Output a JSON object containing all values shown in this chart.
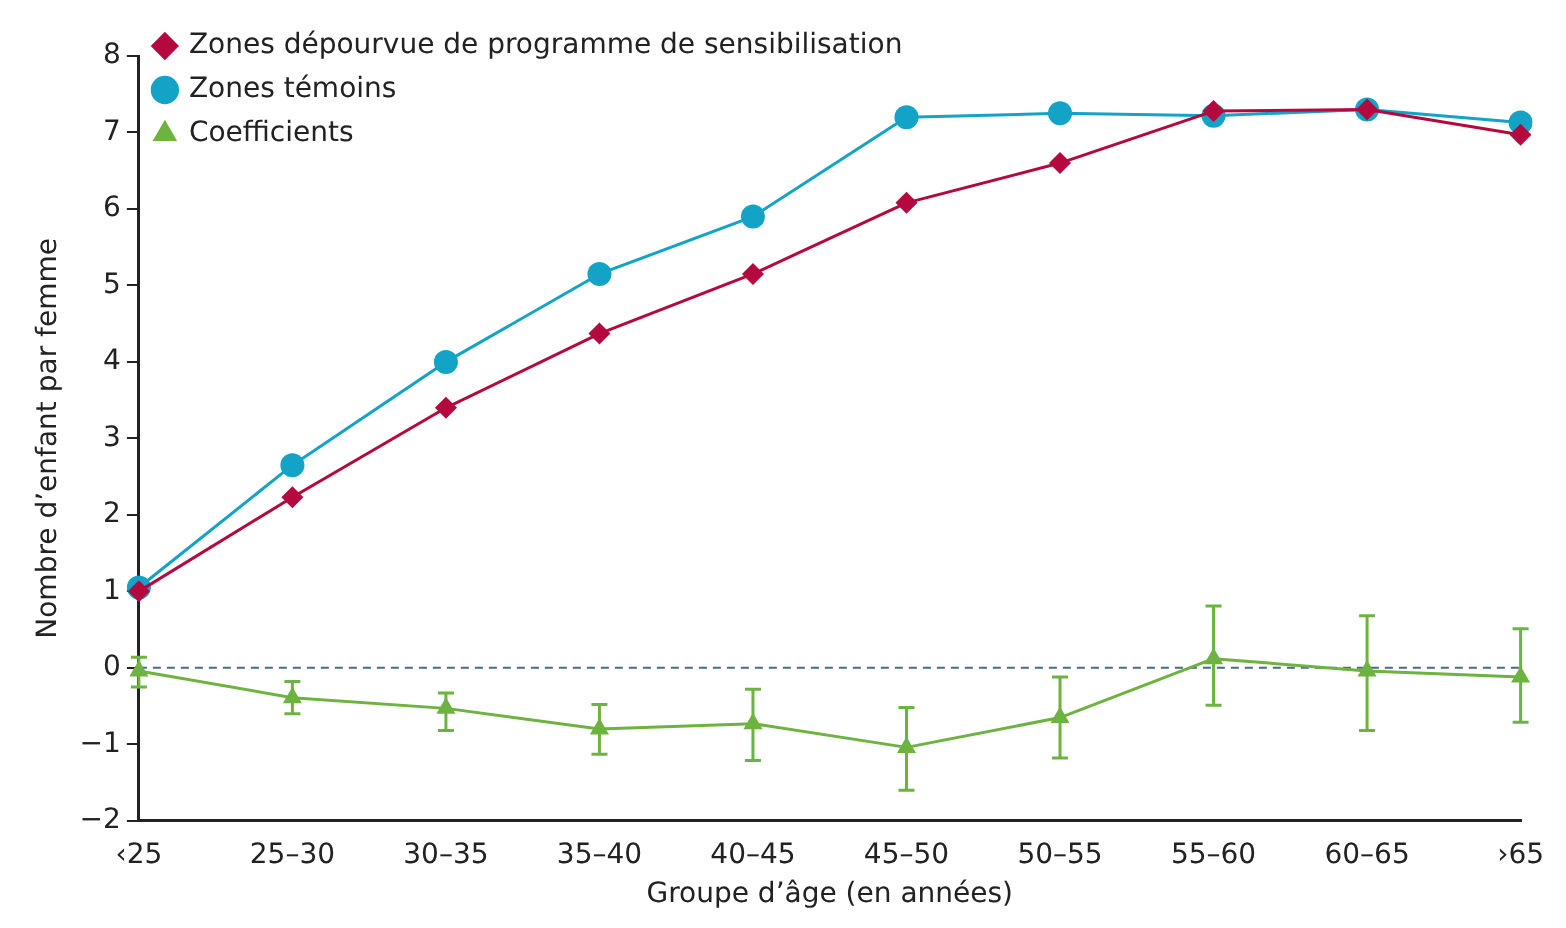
{
  "chart_data": {
    "type": "line",
    "xlabel": "Groupe d’âge (en années)",
    "ylabel": "Nombre d’enfant par femme",
    "categories": [
      "‹25",
      "25–30",
      "30–35",
      "35–40",
      "40–45",
      "45–50",
      "50–55",
      "55–60",
      "60–65",
      "›65"
    ],
    "series": [
      {
        "name": "Zones dépourvue de programme de sensibilisation",
        "color": "#b5083f",
        "marker": "diamond",
        "values": [
          1.0,
          2.23,
          3.4,
          4.37,
          5.15,
          6.08,
          6.6,
          7.28,
          7.3,
          6.97
        ]
      },
      {
        "name": "Zones témoins",
        "color": "#12a3c6",
        "marker": "circle",
        "values": [
          1.05,
          2.65,
          4.0,
          5.15,
          5.9,
          7.2,
          7.25,
          7.22,
          7.3,
          7.13
        ]
      },
      {
        "name": "Coefficients",
        "color": "#6db33f",
        "marker": "triangle",
        "values": [
          -0.04,
          -0.39,
          -0.53,
          -0.8,
          -0.73,
          -1.04,
          -0.65,
          0.12,
          -0.04,
          -0.12
        ],
        "errors": [
          [
            -0.25,
            0.14
          ],
          [
            -0.6,
            -0.18
          ],
          [
            -0.82,
            -0.33
          ],
          [
            -1.13,
            -0.48
          ],
          [
            -1.21,
            -0.28
          ],
          [
            -1.6,
            -0.52
          ],
          [
            -1.18,
            -0.12
          ],
          [
            -0.49,
            0.81
          ],
          [
            -0.82,
            0.68
          ],
          [
            -0.71,
            0.51
          ]
        ]
      }
    ],
    "ylim": [
      -2,
      8
    ],
    "yticks": [
      {
        "value": -2,
        "label": "−2"
      },
      {
        "value": -1,
        "label": "−1"
      },
      0,
      1,
      2,
      3,
      4,
      5,
      6,
      7,
      8
    ],
    "ref_lines": [
      {
        "axis": "y",
        "value": 0,
        "color": "#4a6b80",
        "line_style": "dashed"
      }
    ],
    "grid": false,
    "legend": "top left"
  }
}
